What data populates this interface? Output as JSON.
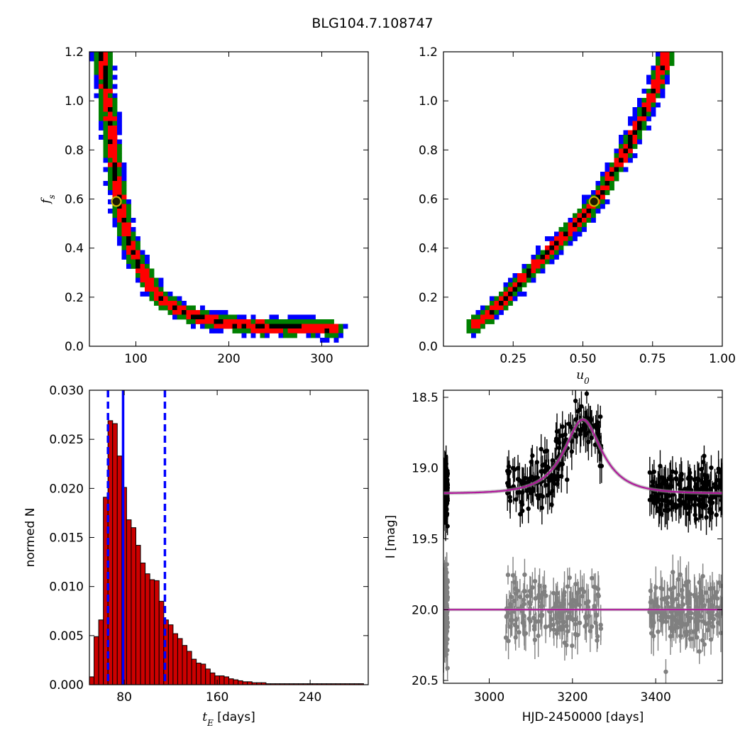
{
  "title": "BLG104.7.108747",
  "chart_data": [
    {
      "id": "fs_vs_tE",
      "type": "heatmap",
      "xlabel": "",
      "ylabel": "f_s",
      "xlim": [
        50,
        350
      ],
      "ylim": [
        0.0,
        1.2
      ],
      "xticks": [
        100,
        200,
        300
      ],
      "xticklabels": [
        "100",
        "200",
        "300"
      ],
      "yticks": [
        0.0,
        0.2,
        0.4,
        0.6,
        0.8,
        1.0,
        1.2
      ],
      "yticklabels": [
        "0.0",
        "0.2",
        "0.4",
        "0.6",
        "0.8",
        "1.0",
        "1.2"
      ],
      "levels": [
        "black",
        "red",
        "green",
        "blue"
      ],
      "colors": {
        "black": "#000000",
        "red": "#ff0000",
        "green": "#008000",
        "blue": "#0000ff",
        "marker_edge": "#c8b400",
        "marker_face": "#1c1c00"
      },
      "best_fit": {
        "x": 79,
        "y": 0.59
      },
      "ridge": [
        [
          64,
          1.19
        ],
        [
          70,
          0.98
        ],
        [
          76,
          0.76
        ],
        [
          83,
          0.57
        ],
        [
          92,
          0.43
        ],
        [
          103,
          0.33
        ],
        [
          115,
          0.25
        ],
        [
          132,
          0.18
        ],
        [
          155,
          0.13
        ],
        [
          185,
          0.1
        ],
        [
          230,
          0.08
        ],
        [
          280,
          0.075
        ],
        [
          315,
          0.07
        ]
      ],
      "band": {
        "black": 2,
        "red": 6,
        "green": 11,
        "blue": 15
      }
    },
    {
      "id": "fs_vs_u0",
      "type": "heatmap",
      "xlabel": "u_0",
      "ylabel": "",
      "xlim": [
        0.0,
        1.0
      ],
      "ylim": [
        0.0,
        1.2
      ],
      "xticks": [
        0.25,
        0.5,
        0.75,
        1.0
      ],
      "xticklabels": [
        "0.25",
        "0.50",
        "0.75",
        "1.00"
      ],
      "yticks": [
        0.0,
        0.2,
        0.4,
        0.6,
        0.8,
        1.0,
        1.2
      ],
      "yticklabels": [
        "0.0",
        "0.2",
        "0.4",
        "0.6",
        "0.8",
        "1.0",
        "1.2"
      ],
      "levels": [
        "black",
        "red",
        "green",
        "blue"
      ],
      "best_fit": {
        "x": 0.54,
        "y": 0.59
      },
      "ridge": [
        [
          0.11,
          0.08
        ],
        [
          0.2,
          0.17
        ],
        [
          0.3,
          0.29
        ],
        [
          0.4,
          0.41
        ],
        [
          0.5,
          0.53
        ],
        [
          0.55,
          0.6
        ],
        [
          0.6,
          0.69
        ],
        [
          0.65,
          0.79
        ],
        [
          0.7,
          0.9
        ],
        [
          0.75,
          1.03
        ],
        [
          0.8,
          1.18
        ]
      ],
      "band": {
        "black": 2,
        "red": 6,
        "green": 10,
        "blue": 14
      }
    },
    {
      "id": "tE_histogram",
      "type": "bar",
      "xlabel": "[days]",
      "xlabel_math": "t_E",
      "ylabel": "normed N",
      "xlim": [
        50,
        290
      ],
      "ylim": [
        0.0,
        0.03
      ],
      "xticks": [
        80,
        160,
        240
      ],
      "xticklabels": [
        "80",
        "160",
        "240"
      ],
      "yticks": [
        0.0,
        0.005,
        0.01,
        0.015,
        0.02,
        0.025,
        0.03
      ],
      "yticklabels": [
        "0.000",
        "0.005",
        "0.010",
        "0.015",
        "0.020",
        "0.025",
        "0.030"
      ],
      "bin_start": 50,
      "bin_width": 4,
      "values": [
        0.0008,
        0.0049,
        0.0066,
        0.0191,
        0.0269,
        0.0266,
        0.0233,
        0.0201,
        0.0168,
        0.016,
        0.0142,
        0.0124,
        0.0113,
        0.0107,
        0.0106,
        0.0085,
        0.0066,
        0.0061,
        0.0052,
        0.0047,
        0.004,
        0.0034,
        0.0026,
        0.0022,
        0.0021,
        0.0016,
        0.0012,
        0.0009,
        0.0009,
        0.0008,
        0.0006,
        0.0005,
        0.0004,
        0.0003,
        0.0003,
        0.0002,
        0.0002,
        0.0002,
        0.0001,
        0.0001,
        0.0001,
        0.0001,
        0.0001,
        0.0001,
        0.0001,
        0.0001,
        0.0001,
        0.0001,
        0.0001,
        0.0001,
        0.0001,
        0.0001,
        0.0001,
        0.0001,
        0.0001,
        0.0001,
        0.0001,
        0.0001,
        0.0001
      ],
      "vlines": [
        {
          "x": 66,
          "style": "dashed"
        },
        {
          "x": 79,
          "style": "solid"
        },
        {
          "x": 115,
          "style": "dashed"
        }
      ],
      "colors": {
        "bar": "#cc0000",
        "edge": "#000000",
        "vline": "#0000ff"
      }
    },
    {
      "id": "lightcurve",
      "type": "scatter",
      "xlabel": "HJD-2450000 [days]",
      "ylabel": "I [mag]",
      "xlim": [
        2890,
        3560
      ],
      "ylim": [
        20.52,
        18.45
      ],
      "xticks": [
        3000,
        3200,
        3400
      ],
      "xticklabels": [
        "3000",
        "3200",
        "3400"
      ],
      "yticks": [
        18.5,
        19.0,
        19.5,
        20.0,
        20.5
      ],
      "yticklabels": [
        "18.5",
        "19.0",
        "19.5",
        "20.0",
        "20.5"
      ],
      "model": {
        "t0": 3225,
        "tE": 79,
        "u0": 0.54,
        "fs": 0.59,
        "baseline": 19.18,
        "residual_baseline": 20.0
      },
      "observing_seasons": [
        [
          2890,
          2900
        ],
        [
          3040,
          3270
        ],
        [
          3385,
          3560
        ]
      ],
      "series": [
        {
          "name": "",
          "role": "data",
          "color": "#000000",
          "scatter": 0.09,
          "error": 0.09
        },
        {
          "name": "",
          "role": "residuals",
          "color": "#808080",
          "scatter": 0.11,
          "error": 0.1
        },
        {
          "name": "",
          "role": "model",
          "color": "#b0189b"
        }
      ]
    }
  ]
}
